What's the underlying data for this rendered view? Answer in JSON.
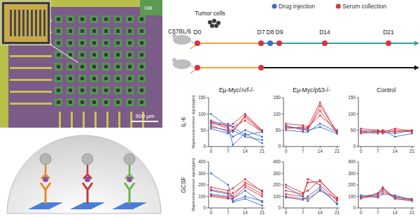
{
  "micrograph": {
    "labels": [
      "GM"
    ],
    "scale_bar": "500 μm"
  },
  "timeline": {
    "strain": "C57BL/6",
    "tumor_label": "Tumor cells",
    "legend": [
      {
        "label": "Drug injection",
        "color": "#3d6cc9"
      },
      {
        "label": "Serum collection",
        "color": "#d8323f"
      }
    ],
    "days": [
      {
        "label": "D0",
        "day": 0
      },
      {
        "label": "D7",
        "day": 7
      },
      {
        "label": "D8",
        "day": 8
      },
      {
        "label": "D9",
        "day": 9
      },
      {
        "label": "D14",
        "day": 14
      },
      {
        "label": "D21",
        "day": 21
      }
    ],
    "tracks": [
      {
        "serum_collection": [
          0,
          7,
          9,
          14,
          21
        ],
        "drug_injection": [
          8
        ]
      },
      {
        "serum_collection": [
          0,
          7
        ]
      }
    ]
  },
  "chart_data": [
    {
      "type": "line",
      "title": "Eμ-Myc/Arf-/-",
      "ylabel": "Magnetonanosensor signal [ppm]",
      "annotations": [
        "IL-6"
      ],
      "x": [
        0,
        7,
        9,
        14,
        21
      ],
      "xlim": [
        -1,
        22
      ],
      "xticks": [
        0,
        7,
        14,
        21
      ],
      "ylim": [
        0,
        150
      ],
      "yticks": [
        0,
        50,
        100,
        150
      ],
      "marker": "circle",
      "series": [
        {
          "color": "#d8323f",
          "values": [
            80,
            60,
            70,
            100,
            50
          ]
        },
        {
          "color": "#d8323f",
          "values": [
            75,
            55,
            50,
            90,
            45
          ]
        },
        {
          "color": "#d8323f",
          "values": [
            70,
            65,
            60,
            80,
            45
          ]
        },
        {
          "color": "#d8323f",
          "values": [
            60,
            50,
            45,
            95,
            48
          ]
        },
        {
          "color": "#3d6cc9",
          "values": [
            100,
            60,
            5,
            40,
            10
          ]
        },
        {
          "color": "#3d6cc9",
          "values": [
            65,
            45,
            30,
            50,
            30
          ]
        },
        {
          "color": "#3d6cc9",
          "values": [
            55,
            40,
            50,
            30,
            20
          ]
        },
        {
          "color": "#3d6cc9",
          "values": [
            75,
            70,
            60,
            35,
            45
          ]
        }
      ]
    },
    {
      "type": "line",
      "title": "Eμ-Myc/p53-/-",
      "x": [
        0,
        7,
        9,
        14,
        21
      ],
      "xlim": [
        -1,
        22
      ],
      "xticks": [
        0,
        7,
        14,
        21
      ],
      "ylim": [
        0,
        150
      ],
      "yticks": [
        0,
        50,
        100,
        150
      ],
      "marker": "circle",
      "series": [
        {
          "color": "#d8323f",
          "values": [
            70,
            65,
            60,
            135,
            40
          ]
        },
        {
          "color": "#d8323f",
          "values": [
            60,
            55,
            50,
            125,
            45
          ]
        },
        {
          "color": "#d8323f",
          "values": [
            55,
            60,
            55,
            110,
            40
          ]
        },
        {
          "color": "#d8323f",
          "values": [
            65,
            50,
            60,
            95,
            50
          ]
        },
        {
          "color": "#3d6cc9",
          "values": [
            50,
            45,
            45,
            70,
            45
          ]
        },
        {
          "color": "#3d6cc9",
          "values": [
            60,
            55,
            50,
            60,
            40
          ]
        }
      ]
    },
    {
      "type": "line",
      "title": "Control",
      "x": [
        0,
        7,
        9,
        14,
        21
      ],
      "xlim": [
        -1,
        22
      ],
      "xticks": [
        0,
        7,
        14,
        21
      ],
      "ylim": [
        0,
        150
      ],
      "yticks": [
        0,
        50,
        100,
        150
      ],
      "marker": "circle",
      "series": [
        {
          "color": "#3d6cc9",
          "values": [
            45,
            40,
            50,
            30,
            40
          ]
        },
        {
          "color": "#3d6cc9",
          "values": [
            50,
            45,
            45,
            40,
            50
          ]
        },
        {
          "color": "#d8323f",
          "values": [
            40,
            45,
            50,
            45,
            50
          ]
        },
        {
          "color": "#d8323f",
          "values": [
            55,
            50,
            40,
            50,
            45
          ]
        },
        {
          "color": "#d8323f",
          "values": [
            45,
            50,
            45,
            55,
            48
          ]
        }
      ]
    },
    {
      "type": "line",
      "ylabel": "Magnetonanosensor signal [ppm]",
      "annotations": [
        "GCSF"
      ],
      "x": [
        0,
        7,
        9,
        14,
        21
      ],
      "xlim": [
        -1,
        22
      ],
      "xticks": [
        0,
        7,
        14,
        21
      ],
      "ylim": [
        0,
        400
      ],
      "yticks": [
        0,
        100,
        200,
        300,
        400
      ],
      "marker": "circle",
      "series": [
        {
          "color": "#3d6cc9",
          "values": [
            300,
            200,
            50,
            80,
            20
          ]
        },
        {
          "color": "#3d6cc9",
          "values": [
            150,
            120,
            80,
            150,
            50
          ]
        },
        {
          "color": "#3d6cc9",
          "values": [
            120,
            100,
            60,
            100,
            60
          ]
        },
        {
          "color": "#d8323f",
          "values": [
            180,
            150,
            170,
            250,
            140
          ]
        },
        {
          "color": "#d8323f",
          "values": [
            110,
            90,
            130,
            200,
            120
          ]
        },
        {
          "color": "#d8323f",
          "values": [
            100,
            80,
            80,
            180,
            100
          ]
        },
        {
          "color": "#d8323f",
          "values": [
            160,
            130,
            100,
            220,
            150
          ]
        }
      ]
    },
    {
      "type": "line",
      "x": [
        0,
        7,
        9,
        14,
        21
      ],
      "xlim": [
        -1,
        22
      ],
      "xticks": [
        0,
        7,
        14,
        21
      ],
      "ylim": [
        0,
        400
      ],
      "yticks": [
        0,
        100,
        200,
        300,
        400
      ],
      "marker": "circle",
      "series": [
        {
          "color": "#d8323f",
          "values": [
            150,
            120,
            220,
            230,
            90
          ]
        },
        {
          "color": "#d8323f",
          "values": [
            200,
            130,
            150,
            240,
            70
          ]
        },
        {
          "color": "#d8323f",
          "values": [
            120,
            100,
            250,
            200,
            60
          ]
        },
        {
          "color": "#d8323f",
          "values": [
            100,
            80,
            80,
            150,
            80
          ]
        },
        {
          "color": "#3d6cc9",
          "values": [
            180,
            100,
            60,
            160,
            40
          ]
        },
        {
          "color": "#3d6cc9",
          "values": [
            90,
            70,
            100,
            180,
            30
          ]
        }
      ]
    },
    {
      "type": "line",
      "x": [
        0,
        7,
        9,
        14,
        21
      ],
      "xlim": [
        -1,
        22
      ],
      "xticks": [
        0,
        7,
        14,
        21
      ],
      "ylim": [
        0,
        400
      ],
      "yticks": [
        0,
        100,
        200,
        300,
        400
      ],
      "marker": "circle",
      "series": [
        {
          "color": "#d8323f",
          "values": [
            100,
            110,
            160,
            80,
            60
          ]
        },
        {
          "color": "#d8323f",
          "values": [
            90,
            100,
            140,
            100,
            70
          ]
        },
        {
          "color": "#3d6cc9",
          "values": [
            100,
            120,
            170,
            90,
            80
          ]
        },
        {
          "color": "#3d6cc9",
          "values": [
            110,
            90,
            120,
            110,
            70
          ]
        },
        {
          "color": "#d8323f",
          "values": [
            80,
            130,
            180,
            80,
            70
          ]
        }
      ]
    }
  ]
}
